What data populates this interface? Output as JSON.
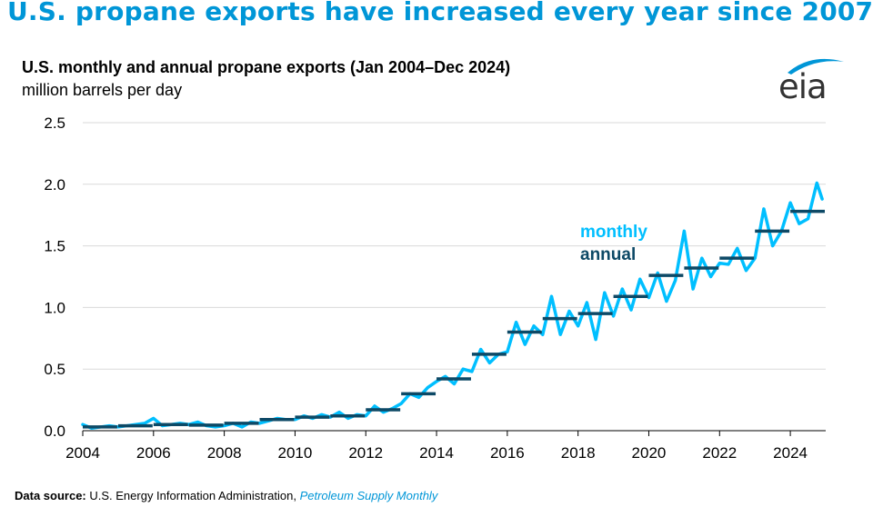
{
  "headline": "U.S. propane exports have increased every year since 2007",
  "logo_text": "eia",
  "source": {
    "label": "Data source:",
    "text": " U.S. Energy Information Administration, ",
    "publication": "Petroleum Supply Monthly"
  },
  "colors": {
    "monthly": "#00bfff",
    "annual": "#0d4966",
    "headline": "#0096d7",
    "grid": "#d9d9d9"
  },
  "chart_data": {
    "type": "line",
    "title": "U.S. monthly and annual propane exports (Jan 2004–Dec 2024)",
    "subtitle": "million barrels per day",
    "xlabel": "",
    "ylabel": "",
    "xlim": [
      2004,
      2025
    ],
    "ylim": [
      0,
      2.5
    ],
    "x_ticks": [
      "2004",
      "2006",
      "2008",
      "2010",
      "2012",
      "2014",
      "2016",
      "2018",
      "2020",
      "2022",
      "2024"
    ],
    "y_ticks": [
      "0.0",
      "0.5",
      "1.0",
      "1.5",
      "2.0",
      "2.5"
    ],
    "grid": true,
    "legend": [
      {
        "name": "monthly",
        "position": "inside-right"
      },
      {
        "name": "annual",
        "position": "inside-right"
      }
    ],
    "series": [
      {
        "name": "annual",
        "x": [
          2004,
          2005,
          2006,
          2007,
          2008,
          2009,
          2010,
          2011,
          2012,
          2013,
          2014,
          2015,
          2016,
          2017,
          2018,
          2019,
          2020,
          2021,
          2022,
          2023,
          2024
        ],
        "values": [
          0.03,
          0.04,
          0.05,
          0.045,
          0.06,
          0.09,
          0.11,
          0.12,
          0.17,
          0.3,
          0.42,
          0.62,
          0.8,
          0.91,
          0.95,
          1.09,
          1.26,
          1.32,
          1.4,
          1.62,
          1.78
        ]
      },
      {
        "name": "monthly",
        "x": [
          2004.0,
          2004.25,
          2004.5,
          2004.75,
          2005.0,
          2005.25,
          2005.5,
          2005.75,
          2006.0,
          2006.25,
          2006.5,
          2006.75,
          2007.0,
          2007.25,
          2007.5,
          2007.75,
          2008.0,
          2008.25,
          2008.5,
          2008.75,
          2009.0,
          2009.25,
          2009.5,
          2009.75,
          2010.0,
          2010.25,
          2010.5,
          2010.75,
          2011.0,
          2011.25,
          2011.5,
          2011.75,
          2012.0,
          2012.25,
          2012.5,
          2012.75,
          2013.0,
          2013.25,
          2013.5,
          2013.75,
          2014.0,
          2014.25,
          2014.5,
          2014.75,
          2015.0,
          2015.25,
          2015.5,
          2015.75,
          2016.0,
          2016.25,
          2016.5,
          2016.75,
          2017.0,
          2017.25,
          2017.5,
          2017.75,
          2018.0,
          2018.25,
          2018.5,
          2018.75,
          2019.0,
          2019.25,
          2019.5,
          2019.75,
          2020.0,
          2020.25,
          2020.5,
          2020.75,
          2021.0,
          2021.25,
          2021.5,
          2021.75,
          2022.0,
          2022.25,
          2022.5,
          2022.75,
          2023.0,
          2023.25,
          2023.5,
          2023.75,
          2024.0,
          2024.25,
          2024.5,
          2024.75,
          2024.9
        ],
        "values": [
          0.05,
          0.02,
          0.03,
          0.04,
          0.03,
          0.04,
          0.05,
          0.06,
          0.1,
          0.04,
          0.05,
          0.06,
          0.05,
          0.07,
          0.04,
          0.03,
          0.04,
          0.06,
          0.03,
          0.07,
          0.06,
          0.08,
          0.1,
          0.09,
          0.09,
          0.12,
          0.1,
          0.13,
          0.11,
          0.15,
          0.1,
          0.13,
          0.12,
          0.2,
          0.15,
          0.18,
          0.22,
          0.3,
          0.27,
          0.35,
          0.4,
          0.44,
          0.38,
          0.5,
          0.48,
          0.66,
          0.55,
          0.62,
          0.64,
          0.88,
          0.7,
          0.85,
          0.78,
          1.09,
          0.78,
          0.97,
          0.85,
          1.04,
          0.74,
          1.12,
          0.93,
          1.15,
          0.98,
          1.23,
          1.08,
          1.28,
          1.05,
          1.22,
          1.62,
          1.15,
          1.4,
          1.25,
          1.36,
          1.35,
          1.48,
          1.3,
          1.4,
          1.8,
          1.5,
          1.62,
          1.85,
          1.68,
          1.72,
          2.01,
          1.88
        ]
      }
    ]
  }
}
